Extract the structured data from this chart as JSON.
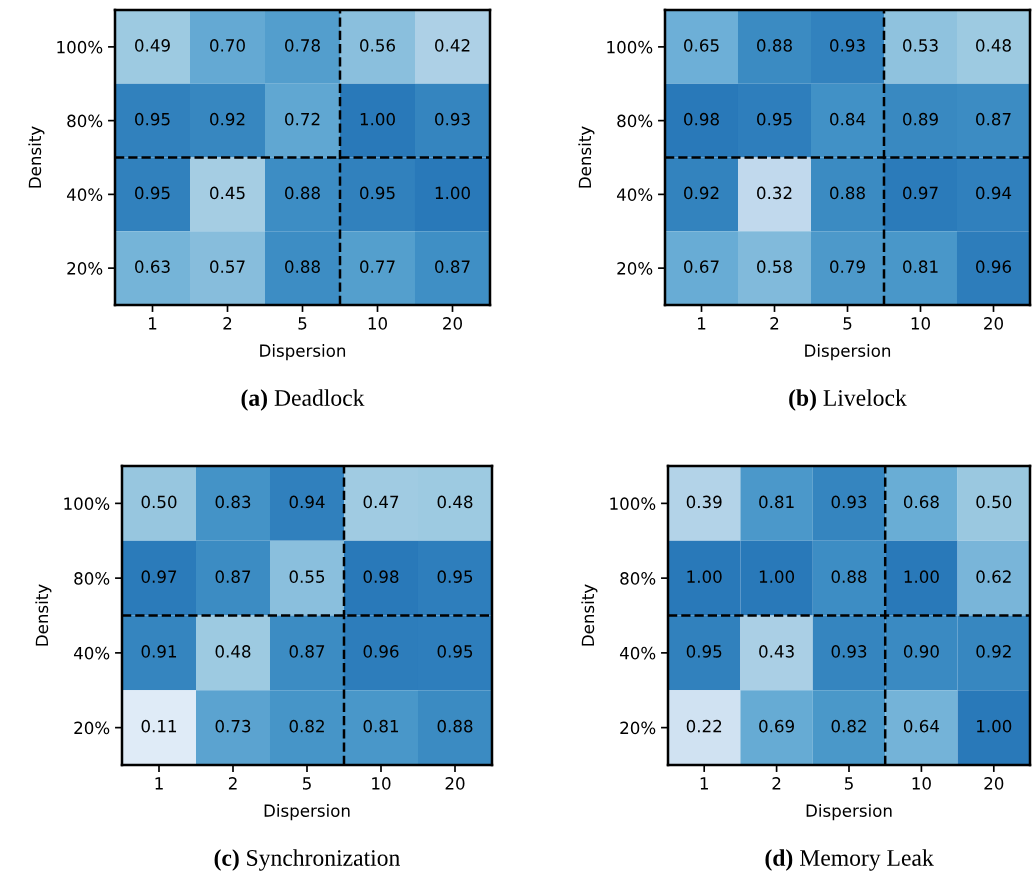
{
  "chart_data": [
    {
      "type": "heatmap",
      "title": "(a) Deadlock",
      "xlabel": "Dispersion",
      "ylabel": "Density",
      "categories": [
        "1",
        "2",
        "5",
        "10",
        "20"
      ],
      "y_categories": [
        "100%",
        "80%",
        "40%",
        "20%"
      ],
      "cells": [
        [
          0.49,
          0.7,
          0.78,
          0.56,
          0.42
        ],
        [
          0.95,
          0.92,
          0.72,
          1.0,
          0.93
        ],
        [
          0.95,
          0.45,
          0.88,
          0.95,
          1.0
        ],
        [
          0.63,
          0.57,
          0.88,
          0.77,
          0.87
        ]
      ],
      "cell_labels": [
        [
          "0.49",
          "0.70",
          "0.78",
          "0.56",
          "0.42"
        ],
        [
          "0.95",
          "0.92",
          "0.72",
          "1.00",
          "0.93"
        ],
        [
          "0.95",
          "0.45",
          "0.88",
          "0.95",
          "1.00"
        ],
        [
          "0.63",
          "0.57",
          "0.88",
          "0.77",
          "0.87"
        ]
      ]
    },
    {
      "type": "heatmap",
      "title": "(b) Livelock",
      "xlabel": "Dispersion",
      "ylabel": "Density",
      "categories": [
        "1",
        "2",
        "5",
        "10",
        "20"
      ],
      "y_categories": [
        "100%",
        "80%",
        "40%",
        "20%"
      ],
      "cells": [
        [
          0.65,
          0.88,
          0.93,
          0.53,
          0.48
        ],
        [
          0.98,
          0.95,
          0.84,
          0.89,
          0.87
        ],
        [
          0.92,
          0.32,
          0.88,
          0.97,
          0.94
        ],
        [
          0.67,
          0.58,
          0.79,
          0.81,
          0.96
        ]
      ],
      "cell_labels": [
        [
          "0.65",
          "0.88",
          "0.93",
          "0.53",
          "0.48"
        ],
        [
          "0.98",
          "0.95",
          "0.84",
          "0.89",
          "0.87"
        ],
        [
          "0.92",
          "0.32",
          "0.88",
          "0.97",
          "0.94"
        ],
        [
          "0.67",
          "0.58",
          "0.79",
          "0.81",
          "0.96"
        ]
      ]
    },
    {
      "type": "heatmap",
      "title": "(c) Synchronization",
      "xlabel": "Dispersion",
      "ylabel": "Density",
      "categories": [
        "1",
        "2",
        "5",
        "10",
        "20"
      ],
      "y_categories": [
        "100%",
        "80%",
        "40%",
        "20%"
      ],
      "cells": [
        [
          0.5,
          0.83,
          0.94,
          0.47,
          0.48
        ],
        [
          0.97,
          0.87,
          0.55,
          0.98,
          0.95
        ],
        [
          0.91,
          0.48,
          0.87,
          0.96,
          0.95
        ],
        [
          0.11,
          0.73,
          0.82,
          0.81,
          0.88
        ]
      ],
      "cell_labels": [
        [
          "0.50",
          "0.83",
          "0.94",
          "0.47",
          "0.48"
        ],
        [
          "0.97",
          "0.87",
          "0.55",
          "0.98",
          "0.95"
        ],
        [
          "0.91",
          "0.48",
          "0.87",
          "0.96",
          "0.95"
        ],
        [
          "0.11",
          "0.73",
          "0.82",
          "0.81",
          "0.88"
        ]
      ]
    },
    {
      "type": "heatmap",
      "title": "(d) Memory Leak",
      "xlabel": "Dispersion",
      "ylabel": "Density",
      "categories": [
        "1",
        "2",
        "5",
        "10",
        "20"
      ],
      "y_categories": [
        "100%",
        "80%",
        "40%",
        "20%"
      ],
      "cells": [
        [
          0.39,
          0.81,
          0.93,
          0.68,
          0.5
        ],
        [
          1.0,
          1.0,
          0.88,
          1.0,
          0.62
        ],
        [
          0.95,
          0.43,
          0.93,
          0.9,
          0.92
        ],
        [
          0.22,
          0.69,
          0.82,
          0.64,
          1.0
        ]
      ],
      "cell_labels": [
        [
          "0.39",
          "0.81",
          "0.93",
          "0.68",
          "0.50"
        ],
        [
          "1.00",
          "1.00",
          "0.88",
          "1.00",
          "0.62"
        ],
        [
          "0.95",
          "0.43",
          "0.93",
          "0.90",
          "0.92"
        ],
        [
          "0.22",
          "0.69",
          "0.82",
          "0.64",
          "1.00"
        ]
      ]
    }
  ]
}
